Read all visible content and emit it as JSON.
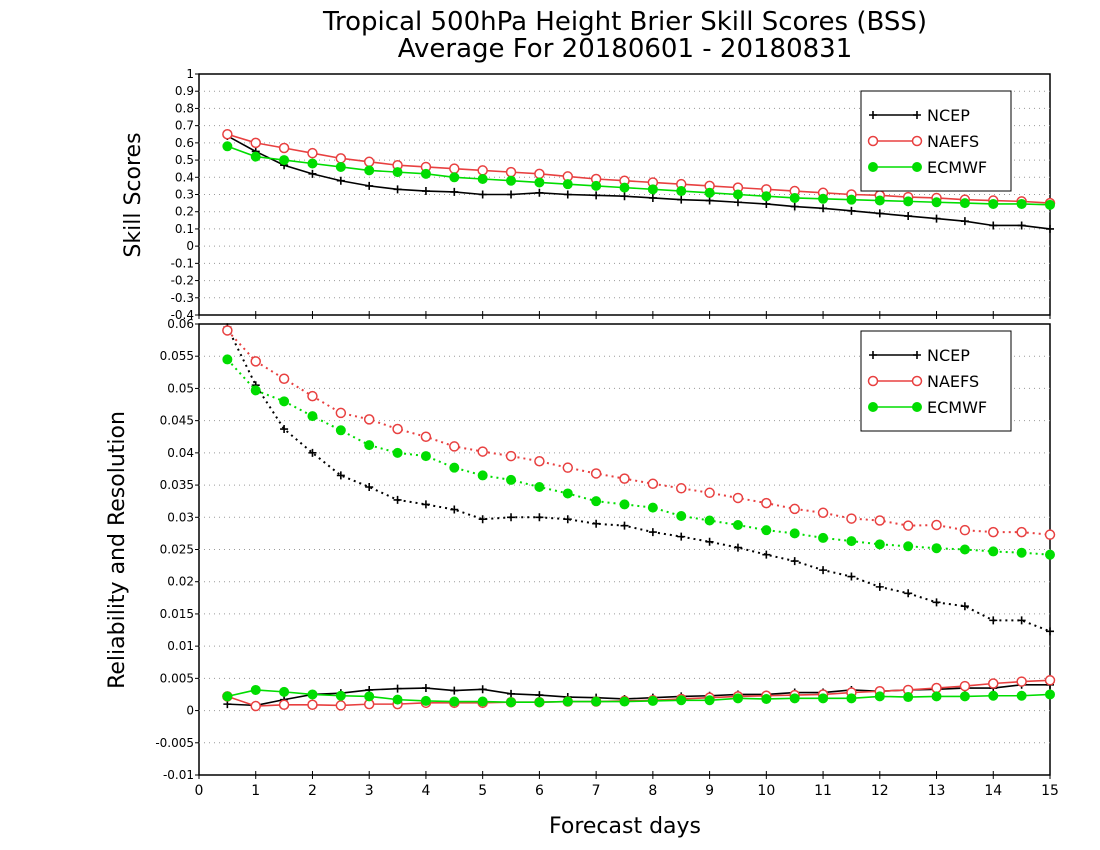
{
  "title_line1": "Tropical 500hPa Height Brier Skill Scores (BSS)",
  "title_line2": "Average For 20180601 - 20180831",
  "xlabel": "Forecast days",
  "xticks": [
    "0",
    "1",
    "2",
    "3",
    "4",
    "5",
    "6",
    "7",
    "8",
    "9",
    "10",
    "11",
    "12",
    "13",
    "14",
    "15"
  ],
  "colors": {
    "NCEP": "#000000",
    "NAEFS": "#e84040",
    "ECMWF": "#00dd00"
  },
  "chart_data": [
    {
      "type": "line",
      "panel": "top",
      "ylabel": "Skill Scores",
      "ylim": [
        -0.4,
        1.0
      ],
      "xlim": [
        0,
        15
      ],
      "grid": true,
      "legend_position": "top-right",
      "yticks": [
        "-0.4",
        "-0.3",
        "-0.2",
        "-0.1",
        "0",
        "0.1",
        "0.2",
        "0.3",
        "0.4",
        "0.5",
        "0.6",
        "0.7",
        "0.8",
        "0.9",
        "1"
      ],
      "x": [
        0.5,
        1,
        1.5,
        2,
        2.5,
        3,
        3.5,
        4,
        4.5,
        5,
        5.5,
        6,
        6.5,
        7,
        7.5,
        8,
        8.5,
        9,
        9.5,
        10,
        10.5,
        11,
        11.5,
        12,
        12.5,
        13,
        13.5,
        14,
        14.5,
        15
      ],
      "series": [
        {
          "name": "NCEP",
          "marker": "plus",
          "style": "solid",
          "values": [
            0.64,
            0.55,
            0.47,
            0.42,
            0.38,
            0.35,
            0.33,
            0.32,
            0.315,
            0.3,
            0.3,
            0.31,
            0.3,
            0.295,
            0.29,
            0.28,
            0.27,
            0.265,
            0.255,
            0.245,
            0.23,
            0.22,
            0.205,
            0.19,
            0.175,
            0.16,
            0.145,
            0.12,
            0.12,
            0.1
          ]
        },
        {
          "name": "NAEFS",
          "marker": "open-circle",
          "style": "solid",
          "values": [
            0.65,
            0.6,
            0.57,
            0.54,
            0.51,
            0.49,
            0.47,
            0.46,
            0.45,
            0.44,
            0.43,
            0.42,
            0.405,
            0.39,
            0.38,
            0.37,
            0.36,
            0.35,
            0.34,
            0.33,
            0.32,
            0.31,
            0.3,
            0.295,
            0.285,
            0.28,
            0.27,
            0.265,
            0.26,
            0.25
          ]
        },
        {
          "name": "ECMWF",
          "marker": "filled-circle",
          "style": "solid",
          "values": [
            0.58,
            0.52,
            0.5,
            0.48,
            0.46,
            0.44,
            0.43,
            0.42,
            0.4,
            0.39,
            0.38,
            0.37,
            0.36,
            0.35,
            0.34,
            0.33,
            0.32,
            0.31,
            0.3,
            0.29,
            0.28,
            0.275,
            0.27,
            0.265,
            0.26,
            0.255,
            0.25,
            0.245,
            0.245,
            0.24
          ]
        }
      ]
    },
    {
      "type": "line",
      "panel": "bottom",
      "ylabel": "Reliability and Resolution",
      "ylim": [
        -0.01,
        0.06
      ],
      "xlim": [
        0,
        15
      ],
      "grid": true,
      "legend_position": "top-right",
      "yticks": [
        "-0.01",
        "-0.005",
        "0",
        "0.005",
        "0.01",
        "0.015",
        "0.02",
        "0.025",
        "0.03",
        "0.035",
        "0.04",
        "0.045",
        "0.05",
        "0.055",
        "0.06"
      ],
      "x": [
        0.5,
        1,
        1.5,
        2,
        2.5,
        3,
        3.5,
        4,
        4.5,
        5,
        5.5,
        6,
        6.5,
        7,
        7.5,
        8,
        8.5,
        9,
        9.5,
        10,
        10.5,
        11,
        11.5,
        12,
        12.5,
        13,
        13.5,
        14,
        14.5,
        15
      ],
      "series": [
        {
          "name": "NCEP",
          "marker": "plus",
          "style": "dotted",
          "values": [
            0.0595,
            0.0505,
            0.0437,
            0.04,
            0.0365,
            0.0347,
            0.0327,
            0.032,
            0.0312,
            0.0297,
            0.03,
            0.03,
            0.0297,
            0.029,
            0.0287,
            0.0277,
            0.027,
            0.0262,
            0.0253,
            0.0242,
            0.0232,
            0.0218,
            0.0208,
            0.0192,
            0.0182,
            0.0168,
            0.0162,
            0.014,
            0.014,
            0.0123
          ]
        },
        {
          "name": "NAEFS",
          "marker": "open-circle",
          "style": "dotted",
          "values": [
            0.059,
            0.0542,
            0.0515,
            0.0488,
            0.0462,
            0.0452,
            0.0437,
            0.0425,
            0.041,
            0.0402,
            0.0395,
            0.0387,
            0.0377,
            0.0368,
            0.036,
            0.0352,
            0.0345,
            0.0338,
            0.033,
            0.0322,
            0.0313,
            0.0307,
            0.0298,
            0.0295,
            0.0287,
            0.0288,
            0.028,
            0.0277,
            0.0277,
            0.0273
          ]
        },
        {
          "name": "ECMWF",
          "marker": "filled-circle",
          "style": "dotted",
          "values": [
            0.0545,
            0.0497,
            0.048,
            0.0457,
            0.0435,
            0.0412,
            0.04,
            0.0395,
            0.0377,
            0.0365,
            0.0358,
            0.0347,
            0.0337,
            0.0325,
            0.032,
            0.0315,
            0.0302,
            0.0295,
            0.0288,
            0.028,
            0.0275,
            0.0268,
            0.0263,
            0.0258,
            0.0255,
            0.0252,
            0.025,
            0.0247,
            0.0245,
            0.0242
          ]
        },
        {
          "name": "NCEP",
          "marker": "plus",
          "style": "solid",
          "legend": false,
          "values": [
            0.001,
            0.0008,
            0.0017,
            0.0025,
            0.0027,
            0.0032,
            0.0034,
            0.0035,
            0.0031,
            0.0033,
            0.0026,
            0.0024,
            0.0021,
            0.002,
            0.0018,
            0.002,
            0.0022,
            0.0023,
            0.0025,
            0.0025,
            0.0028,
            0.0028,
            0.0032,
            0.003,
            0.0032,
            0.0033,
            0.0035,
            0.0035,
            0.004,
            0.004
          ]
        },
        {
          "name": "NAEFS",
          "marker": "open-circle",
          "style": "solid",
          "legend": false,
          "values": [
            0.0022,
            0.0007,
            0.0009,
            0.0009,
            0.0008,
            0.001,
            0.001,
            0.0012,
            0.0012,
            0.0012,
            0.0013,
            0.0013,
            0.0014,
            0.0014,
            0.0015,
            0.0016,
            0.0018,
            0.002,
            0.0022,
            0.0023,
            0.0024,
            0.0025,
            0.0028,
            0.003,
            0.0032,
            0.0035,
            0.0038,
            0.0042,
            0.0045,
            0.0047
          ]
        },
        {
          "name": "ECMWF",
          "marker": "filled-circle",
          "style": "solid",
          "legend": false,
          "values": [
            0.0022,
            0.0032,
            0.0029,
            0.0025,
            0.0023,
            0.0022,
            0.0017,
            0.0015,
            0.0014,
            0.0014,
            0.0013,
            0.0013,
            0.0014,
            0.0014,
            0.0014,
            0.0015,
            0.0016,
            0.0016,
            0.0019,
            0.0018,
            0.0019,
            0.0019,
            0.0019,
            0.0022,
            0.0021,
            0.0022,
            0.0022,
            0.0023,
            0.0023,
            0.0025
          ]
        }
      ]
    }
  ]
}
